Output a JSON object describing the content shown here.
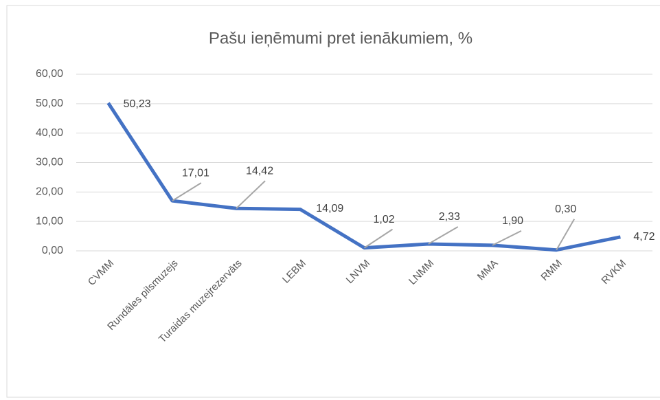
{
  "chart_data": {
    "type": "line",
    "title": "Pašu ieņēmumi pret ienākumiem, %",
    "categories": [
      "CVMM",
      "Rundāles pilsmuzejs",
      "Turaidas muzejrezervāts",
      "LEBM",
      "LNVM",
      "LNMM",
      "MMA",
      "RMM",
      "RVKM"
    ],
    "series": [
      {
        "name": "Pašu ieņēmumi pret ienākumiem, %",
        "color": "#4472c4",
        "values": [
          50.23,
          17.01,
          14.42,
          14.09,
          1.02,
          2.33,
          1.9,
          0.3,
          4.72
        ],
        "value_labels": [
          "50,23",
          "17,01",
          "14,42",
          "14,09",
          "1,02",
          "2,33",
          "1,90",
          "0,30",
          "4,72"
        ]
      }
    ],
    "ylim": [
      0,
      60
    ],
    "yticks": [
      {
        "value": 0,
        "label": "0,00"
      },
      {
        "value": 10,
        "label": "10,00"
      },
      {
        "value": 20,
        "label": "20,00"
      },
      {
        "value": 30,
        "label": "30,00"
      },
      {
        "value": 40,
        "label": "40,00"
      },
      {
        "value": 50,
        "label": "50,00"
      },
      {
        "value": 60,
        "label": "60,00"
      }
    ],
    "grid": true
  }
}
